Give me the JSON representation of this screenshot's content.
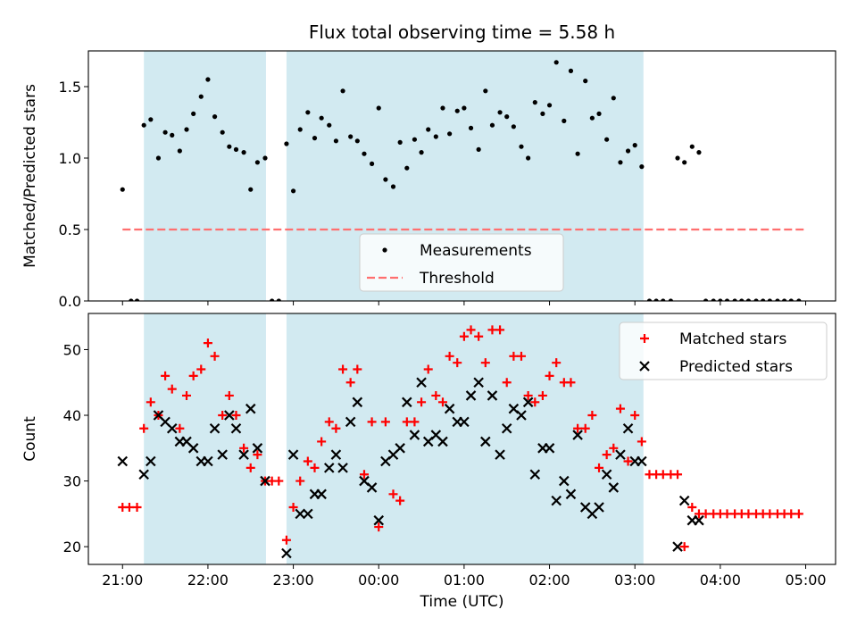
{
  "chart_data": [
    {
      "type": "scatter",
      "title": "Flux total observing time = 5.58 h",
      "xlabel": "",
      "ylabel": "Matched/Predicted stars",
      "xlim": [
        20.6,
        29.35
      ],
      "ylim": [
        0.0,
        1.75
      ],
      "yticks": [
        0.0,
        0.5,
        1.0,
        1.5
      ],
      "ytick_labels": [
        "0.0",
        "0.5",
        "1.0",
        "1.5"
      ],
      "shaded_intervals": [
        [
          21.25,
          22.68
        ],
        [
          22.92,
          27.1
        ]
      ],
      "shade_color": "#add8e6",
      "legend": {
        "location": "lower-center",
        "entries": [
          "Measurements",
          "Threshold"
        ]
      },
      "threshold": {
        "name": "Threshold",
        "value": 0.5,
        "x_range": [
          21.0,
          29.0
        ],
        "color": "#ff6f6f",
        "style": "dashed"
      },
      "series": [
        {
          "name": "Measurements",
          "color": "#000000",
          "marker": "dot",
          "x": [
            21.0,
            21.1,
            21.17,
            21.25,
            21.33,
            21.42,
            21.5,
            21.58,
            21.67,
            21.75,
            21.83,
            21.92,
            22.0,
            22.08,
            22.17,
            22.25,
            22.33,
            22.42,
            22.5,
            22.58,
            22.67,
            22.75,
            22.83,
            22.92,
            23.0,
            23.08,
            23.17,
            23.25,
            23.33,
            23.42,
            23.5,
            23.58,
            23.67,
            23.75,
            23.83,
            23.92,
            24.0,
            24.08,
            24.17,
            24.25,
            24.33,
            24.42,
            24.5,
            24.58,
            24.67,
            24.75,
            24.83,
            24.92,
            25.0,
            25.08,
            25.17,
            25.25,
            25.33,
            25.42,
            25.5,
            25.58,
            25.67,
            25.75,
            25.83,
            25.92,
            26.0,
            26.08,
            26.17,
            26.25,
            26.33,
            26.42,
            26.5,
            26.58,
            26.67,
            26.75,
            26.83,
            26.92,
            27.0,
            27.08,
            27.17,
            27.25,
            27.33,
            27.42,
            27.5,
            27.58,
            27.67,
            27.75,
            27.83,
            27.92,
            28.0,
            28.08,
            28.17,
            28.25,
            28.33,
            28.42,
            28.5,
            28.58,
            28.67,
            28.75,
            28.83,
            28.92
          ],
          "y": [
            0.78,
            0.0,
            0.0,
            1.23,
            1.27,
            1.0,
            1.18,
            1.16,
            1.05,
            1.2,
            1.31,
            1.43,
            1.55,
            1.29,
            1.18,
            1.08,
            1.06,
            1.04,
            0.78,
            0.97,
            1.0,
            0.0,
            0.0,
            1.1,
            0.77,
            1.2,
            1.32,
            1.14,
            1.28,
            1.23,
            1.12,
            1.47,
            1.15,
            1.12,
            1.03,
            0.96,
            1.35,
            0.85,
            0.8,
            1.11,
            0.93,
            1.13,
            1.04,
            1.2,
            1.15,
            1.35,
            1.17,
            1.33,
            1.35,
            1.21,
            1.06,
            1.47,
            1.23,
            1.32,
            1.29,
            1.22,
            1.08,
            1.0,
            1.39,
            1.31,
            1.37,
            1.67,
            1.26,
            1.61,
            1.03,
            1.54,
            1.28,
            1.31,
            1.13,
            1.42,
            0.97,
            1.05,
            1.09,
            0.94,
            0.0,
            0.0,
            0.0,
            0.0,
            1.0,
            0.97,
            1.08,
            1.04,
            0.0,
            0.0,
            0.0,
            0.0,
            0.0,
            0.0,
            0.0,
            0.0,
            0.0,
            0.0,
            0.0,
            0.0,
            0.0,
            0.0
          ]
        }
      ]
    },
    {
      "type": "scatter",
      "title": "",
      "xlabel": "Time (UTC)",
      "ylabel": "Count",
      "xlim": [
        20.6,
        29.35
      ],
      "ylim": [
        17.3,
        55.5
      ],
      "yticks": [
        20,
        30,
        40,
        50
      ],
      "ytick_labels": [
        "20",
        "30",
        "40",
        "50"
      ],
      "xticks": [
        21,
        22,
        23,
        24,
        25,
        26,
        27,
        28,
        29
      ],
      "xtick_labels": [
        "21:00",
        "22:00",
        "23:00",
        "00:00",
        "01:00",
        "02:00",
        "03:00",
        "04:00",
        "05:00"
      ],
      "shaded_intervals": [
        [
          21.25,
          22.68
        ],
        [
          22.92,
          27.1
        ]
      ],
      "shade_color": "#add8e6",
      "legend": {
        "location": "top-right",
        "entries": [
          "Matched stars",
          "Predicted stars"
        ]
      },
      "series": [
        {
          "name": "Matched stars",
          "color": "#ff0000",
          "marker": "plus",
          "x": [
            21.0,
            21.08,
            21.17,
            21.25,
            21.33,
            21.42,
            21.5,
            21.58,
            21.67,
            21.75,
            21.83,
            21.92,
            22.0,
            22.08,
            22.17,
            22.25,
            22.33,
            22.42,
            22.5,
            22.58,
            22.67,
            22.75,
            22.83,
            22.92,
            23.0,
            23.08,
            23.17,
            23.25,
            23.33,
            23.42,
            23.5,
            23.58,
            23.67,
            23.75,
            23.83,
            23.92,
            24.0,
            24.08,
            24.17,
            24.25,
            24.33,
            24.42,
            24.5,
            24.58,
            24.67,
            24.75,
            24.83,
            24.92,
            25.0,
            25.08,
            25.17,
            25.25,
            25.33,
            25.42,
            25.5,
            25.58,
            25.67,
            25.75,
            25.83,
            25.92,
            26.0,
            26.08,
            26.17,
            26.25,
            26.33,
            26.42,
            26.5,
            26.58,
            26.67,
            26.75,
            26.83,
            26.92,
            27.0,
            27.08,
            27.17,
            27.25,
            27.33,
            27.42,
            27.5,
            27.58,
            27.67,
            27.75,
            27.83,
            27.92,
            28.0,
            28.08,
            28.17,
            28.25,
            28.33,
            28.42,
            28.5,
            28.58,
            28.67,
            28.75,
            28.83,
            28.92
          ],
          "y": [
            26,
            26,
            26,
            38,
            42,
            40,
            46,
            44,
            38,
            43,
            46,
            47,
            51,
            49,
            40,
            43,
            40,
            35,
            32,
            34,
            30,
            30,
            30,
            21,
            26,
            30,
            33,
            32,
            36,
            39,
            38,
            47,
            45,
            47,
            31,
            39,
            23,
            39,
            28,
            27,
            39,
            39,
            42,
            47,
            43,
            42,
            49,
            48,
            52,
            53,
            52,
            48,
            53,
            53,
            45,
            49,
            49,
            43,
            42,
            43,
            46,
            48,
            45,
            45,
            38,
            38,
            40,
            32,
            34,
            35,
            41,
            33,
            40,
            36,
            31,
            31,
            31,
            31,
            31,
            20,
            26,
            25,
            25,
            25,
            25,
            25,
            25,
            25,
            25,
            25,
            25,
            25,
            25,
            25,
            25,
            25
          ]
        },
        {
          "name": "Predicted stars",
          "color": "#000000",
          "marker": "x",
          "x": [
            21.0,
            21.25,
            21.33,
            21.42,
            21.5,
            21.58,
            21.67,
            21.75,
            21.83,
            21.92,
            22.0,
            22.08,
            22.17,
            22.25,
            22.33,
            22.42,
            22.5,
            22.58,
            22.67,
            22.92,
            23.0,
            23.08,
            23.17,
            23.25,
            23.33,
            23.42,
            23.5,
            23.58,
            23.67,
            23.75,
            23.83,
            23.92,
            24.0,
            24.08,
            24.17,
            24.25,
            24.33,
            24.42,
            24.5,
            24.58,
            24.67,
            24.75,
            24.83,
            24.92,
            25.0,
            25.08,
            25.17,
            25.25,
            25.33,
            25.42,
            25.5,
            25.58,
            25.67,
            25.75,
            25.83,
            25.92,
            26.0,
            26.08,
            26.17,
            26.25,
            26.33,
            26.42,
            26.5,
            26.58,
            26.67,
            26.75,
            26.83,
            26.92,
            27.0,
            27.08,
            27.5,
            27.58,
            27.67,
            27.75
          ],
          "y": [
            33,
            31,
            33,
            40,
            39,
            38,
            36,
            36,
            35,
            33,
            33,
            38,
            34,
            40,
            38,
            34,
            41,
            35,
            30,
            19,
            34,
            25,
            25,
            28,
            28,
            32,
            34,
            32,
            39,
            42,
            30,
            29,
            24,
            33,
            34,
            35,
            42,
            37,
            45,
            36,
            37,
            36,
            41,
            39,
            39,
            43,
            45,
            36,
            43,
            34,
            38,
            41,
            40,
            42,
            31,
            35,
            35,
            27,
            30,
            28,
            37,
            26,
            25,
            26,
            31,
            29,
            34,
            38,
            33,
            33,
            20,
            27,
            24,
            24
          ]
        }
      ]
    }
  ]
}
